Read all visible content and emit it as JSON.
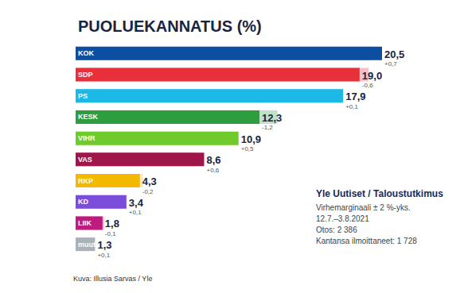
{
  "chart_data": {
    "type": "bar",
    "orientation": "horizontal",
    "title": "PUOLUEKANNATUS (%)",
    "categories": [
      "KOK",
      "SDP",
      "PS",
      "KESK",
      "VIHR",
      "VAS",
      "RKP",
      "KD",
      "LIIK",
      "muut"
    ],
    "values": [
      20.5,
      19.0,
      17.9,
      12.3,
      10.9,
      8.6,
      4.3,
      3.4,
      1.8,
      1.3
    ],
    "value_labels": [
      "20,5",
      "19,0",
      "17,9",
      "12,3",
      "10,9",
      "8,6",
      "4,3",
      "3,4",
      "1,8",
      "1,3"
    ],
    "changes": [
      0.7,
      -0.6,
      0.1,
      -1.2,
      0.5,
      0.6,
      -0.2,
      0.1,
      -0.1,
      0.1
    ],
    "change_labels": [
      "+0,7",
      "-0,6",
      "+0,1",
      "-1,2",
      "+0,5",
      "+0,6",
      "-0,2",
      "+0,1",
      "-0,1",
      "+0,1"
    ],
    "colors": [
      "#0b4ea2",
      "#e8303b",
      "#1cb8e6",
      "#2e9d3f",
      "#6fca2c",
      "#a0164b",
      "#f3b800",
      "#7c4ddb",
      "#bf1a7d",
      "#a9b1b9"
    ],
    "xlim": [
      0,
      20.5
    ],
    "data_labels": true,
    "tick_labels": false,
    "grid": false,
    "annotations": [
      "Yle Uutiset / Taloustutkimus",
      "Virhemarginaali ± 2 %-yks.",
      "12.7.–3.8.2021",
      "Otos: 2 386",
      "Kantansa ilmoittaneet: 1 728"
    ],
    "source": "Kuva: Illusia Sarvas / Yle"
  }
}
